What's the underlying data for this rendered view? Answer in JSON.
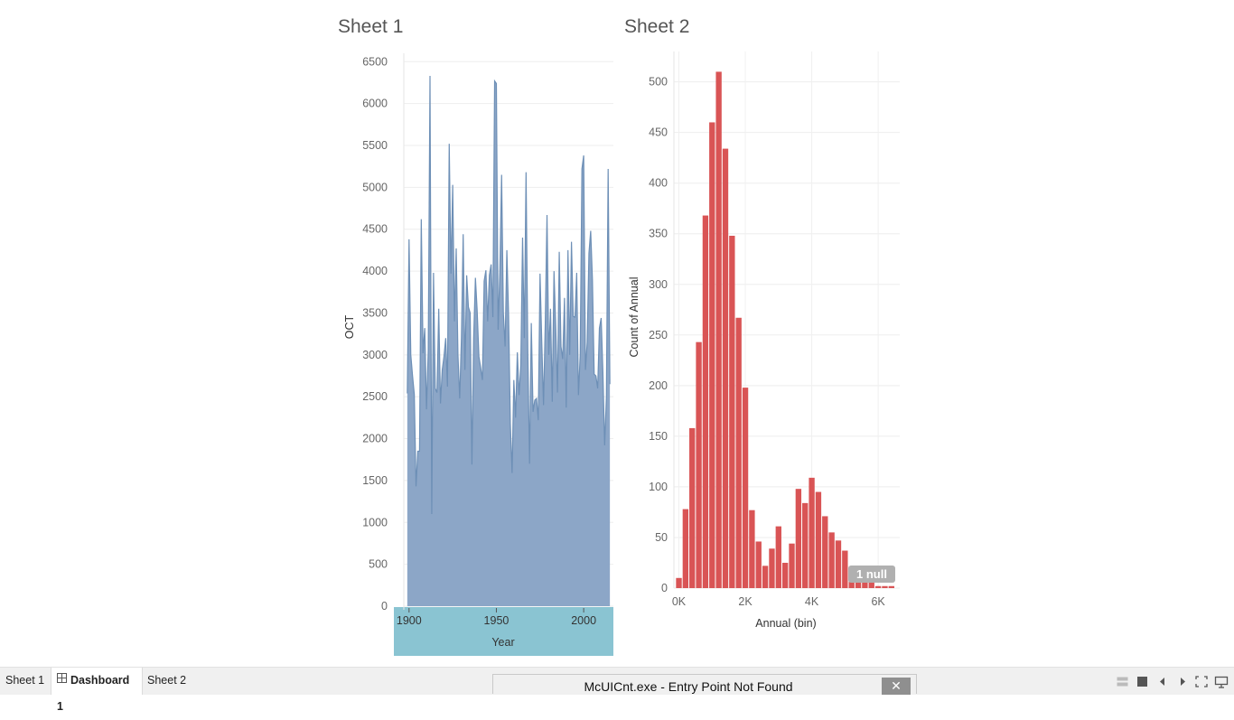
{
  "sheet1": {
    "title": "Sheet 1"
  },
  "sheet2": {
    "title": "Sheet 2"
  },
  "chart_data": [
    {
      "type": "area",
      "title": "Sheet 1",
      "xlabel": "Year",
      "ylabel": "OCT",
      "xlim": [
        1897,
        2017
      ],
      "ylim": [
        0,
        6600
      ],
      "x_ticks": [
        1900,
        1950,
        2000
      ],
      "y_ticks": [
        0,
        500,
        1000,
        1500,
        2000,
        2500,
        3000,
        3500,
        4000,
        4500,
        5000,
        5500,
        6000,
        6500
      ],
      "color": "#8ca6c7",
      "line_color": "#6d8fb6",
      "series": [
        {
          "name": "OCT",
          "points": [
            [
              1899,
              2540
            ],
            [
              1900,
              4380
            ],
            [
              1901,
              3000
            ],
            [
              1902,
              2750
            ],
            [
              1903,
              2530
            ],
            [
              1904,
              1430
            ],
            [
              1905,
              1850
            ],
            [
              1906,
              1850
            ],
            [
              1907,
              4620
            ],
            [
              1908,
              3020
            ],
            [
              1909,
              3320
            ],
            [
              1910,
              2350
            ],
            [
              1911,
              3050
            ],
            [
              1912,
              6330
            ],
            [
              1913,
              1100
            ],
            [
              1914,
              3980
            ],
            [
              1915,
              2600
            ],
            [
              1916,
              2550
            ],
            [
              1917,
              3550
            ],
            [
              1918,
              2420
            ],
            [
              1919,
              2820
            ],
            [
              1920,
              2980
            ],
            [
              1921,
              3200
            ],
            [
              1922,
              2620
            ],
            [
              1923,
              5520
            ],
            [
              1924,
              3970
            ],
            [
              1925,
              5030
            ],
            [
              1926,
              3400
            ],
            [
              1927,
              4270
            ],
            [
              1928,
              3000
            ],
            [
              1929,
              2480
            ],
            [
              1930,
              3200
            ],
            [
              1931,
              4440
            ],
            [
              1932,
              2820
            ],
            [
              1933,
              3950
            ],
            [
              1934,
              3570
            ],
            [
              1935,
              3500
            ],
            [
              1936,
              1690
            ],
            [
              1937,
              3200
            ],
            [
              1938,
              3920
            ],
            [
              1939,
              3530
            ],
            [
              1940,
              2980
            ],
            [
              1941,
              2850
            ],
            [
              1942,
              2700
            ],
            [
              1943,
              3880
            ],
            [
              1944,
              4010
            ],
            [
              1945,
              3400
            ],
            [
              1946,
              3950
            ],
            [
              1947,
              4080
            ],
            [
              1948,
              3450
            ],
            [
              1949,
              6270
            ],
            [
              1950,
              6240
            ],
            [
              1951,
              3300
            ],
            [
              1952,
              4000
            ],
            [
              1953,
              5150
            ],
            [
              1954,
              3500
            ],
            [
              1955,
              3100
            ],
            [
              1956,
              4250
            ],
            [
              1957,
              3470
            ],
            [
              1958,
              2180
            ],
            [
              1959,
              1590
            ],
            [
              1960,
              2700
            ],
            [
              1961,
              2250
            ],
            [
              1962,
              3030
            ],
            [
              1963,
              2520
            ],
            [
              1964,
              2880
            ],
            [
              1965,
              4400
            ],
            [
              1966,
              3200
            ],
            [
              1967,
              5180
            ],
            [
              1968,
              3040
            ],
            [
              1969,
              1700
            ],
            [
              1970,
              3380
            ],
            [
              1971,
              2320
            ],
            [
              1972,
              2460
            ],
            [
              1973,
              2480
            ],
            [
              1974,
              2220
            ],
            [
              1975,
              3970
            ],
            [
              1976,
              3150
            ],
            [
              1977,
              2400
            ],
            [
              1978,
              3380
            ],
            [
              1979,
              4670
            ],
            [
              1980,
              3000
            ],
            [
              1981,
              3550
            ],
            [
              1982,
              2440
            ],
            [
              1983,
              4000
            ],
            [
              1984,
              3320
            ],
            [
              1985,
              2550
            ],
            [
              1986,
              4230
            ],
            [
              1987,
              3100
            ],
            [
              1988,
              2950
            ],
            [
              1989,
              3680
            ],
            [
              1990,
              2370
            ],
            [
              1991,
              4250
            ],
            [
              1992,
              3000
            ],
            [
              1993,
              4350
            ],
            [
              1994,
              3460
            ],
            [
              1995,
              3450
            ],
            [
              1996,
              3980
            ],
            [
              1997,
              2520
            ],
            [
              1998,
              3000
            ],
            [
              1999,
              5220
            ],
            [
              2000,
              5380
            ],
            [
              2001,
              2820
            ],
            [
              2002,
              3150
            ],
            [
              2003,
              4210
            ],
            [
              2004,
              4480
            ],
            [
              2005,
              3900
            ],
            [
              2006,
              2770
            ],
            [
              2007,
              2750
            ],
            [
              2008,
              2600
            ],
            [
              2009,
              3320
            ],
            [
              2010,
              3440
            ],
            [
              2011,
              2790
            ],
            [
              2012,
              1920
            ],
            [
              2013,
              2500
            ],
            [
              2014,
              5220
            ],
            [
              2015,
              2650
            ]
          ]
        }
      ]
    },
    {
      "type": "bar",
      "title": "Sheet 2",
      "xlabel": "Annual (bin)",
      "ylabel": "Count of Annual",
      "xlim": [
        -150,
        6650
      ],
      "ylim": [
        0,
        530
      ],
      "x_ticks": [
        0,
        2000,
        4000,
        6000
      ],
      "x_tick_labels": [
        "0K",
        "2K",
        "4K",
        "6K"
      ],
      "y_ticks": [
        0,
        50,
        100,
        150,
        200,
        250,
        300,
        350,
        400,
        450,
        500
      ],
      "bin_width": 200,
      "bin_starts": [
        -100,
        100,
        300,
        500,
        700,
        900,
        1100,
        1300,
        1500,
        1700,
        1900,
        2100,
        2300,
        2500,
        2700,
        2900,
        3100,
        3300,
        3500,
        3700,
        3900,
        4100,
        4300,
        4500,
        4700,
        4900,
        5100,
        5300,
        5500,
        5700,
        5900,
        6100,
        6300
      ],
      "values": [
        10,
        78,
        158,
        243,
        368,
        460,
        510,
        434,
        348,
        267,
        198,
        77,
        46,
        22,
        39,
        61,
        25,
        44,
        98,
        84,
        109,
        95,
        71,
        55,
        47,
        37,
        20,
        10,
        8,
        6,
        2,
        2,
        2
      ],
      "color": "#d95455",
      "null_badge": "1 null"
    }
  ],
  "tabs": [
    {
      "label": "Sheet 1"
    },
    {
      "label": "Dashboard 1"
    },
    {
      "label": "Sheet 2"
    }
  ],
  "error_dialog": {
    "title": "McUICnt.exe - Entry Point Not Found",
    "close_label": "✕"
  },
  "toolbar_icons": [
    "presentation-layout-icon",
    "stop-icon",
    "prev-icon",
    "next-icon",
    "fullscreen-icon",
    "present-icon"
  ]
}
